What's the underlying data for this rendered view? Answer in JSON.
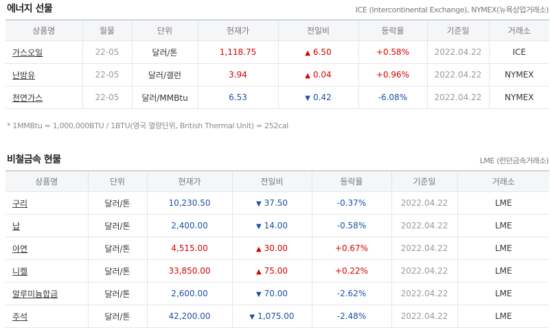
{
  "energy": {
    "title": "에너지 선물",
    "source": "ICE (Intercontinental Exchange), NYMEX(뉴욕상업거래소)",
    "headers": [
      "상품명",
      "월물",
      "단위",
      "현재가",
      "전일비",
      "등락율",
      "기준일",
      "거래소"
    ],
    "rows": [
      {
        "name": "가스오일",
        "month": "22-05",
        "unit": "달러/톤",
        "price": "1,118.75",
        "dir": "up",
        "change": "6.50",
        "rate": "+0.58%",
        "date": "2022.04.22",
        "exchange": "ICE"
      },
      {
        "name": "난방유",
        "month": "22-05",
        "unit": "달러/갤런",
        "price": "3.94",
        "dir": "up",
        "change": "0.04",
        "rate": "+0.96%",
        "date": "2022.04.22",
        "exchange": "NYMEX"
      },
      {
        "name": "천연가스",
        "month": "22-05",
        "unit": "달러/MMBtu",
        "price": "6.53",
        "dir": "down",
        "change": "0.42",
        "rate": "-6.08%",
        "date": "2022.04.22",
        "exchange": "NYMEX"
      }
    ],
    "note": "* 1MMBtu = 1,000,000BTU / 1BTU(영국 열량단위, British Thermal Unit) = 252cal"
  },
  "metals": {
    "title": "비철금속 현물",
    "source": "LME (런던금속거래소)",
    "headers": [
      "상품명",
      "단위",
      "현재가",
      "전일비",
      "등락율",
      "기준일",
      "거래소"
    ],
    "rows": [
      {
        "name": "구리",
        "unit": "달러/톤",
        "price": "10,230.50",
        "dir": "down",
        "change": "37.50",
        "rate": "-0.37%",
        "date": "2022.04.22",
        "exchange": "LME"
      },
      {
        "name": "납",
        "unit": "달러/톤",
        "price": "2,400.00",
        "dir": "down",
        "change": "14.00",
        "rate": "-0.58%",
        "date": "2022.04.22",
        "exchange": "LME"
      },
      {
        "name": "아연",
        "unit": "달러/톤",
        "price": "4,515.00",
        "dir": "up",
        "change": "30.00",
        "rate": "+0.67%",
        "date": "2022.04.22",
        "exchange": "LME"
      },
      {
        "name": "니켈",
        "unit": "달러/톤",
        "price": "33,850.00",
        "dir": "up",
        "change": "75.00",
        "rate": "+0.22%",
        "date": "2022.04.22",
        "exchange": "LME"
      },
      {
        "name": "알루미늄합금",
        "unit": "달러/톤",
        "price": "2,600.00",
        "dir": "down",
        "change": "70.00",
        "rate": "-2.62%",
        "date": "2022.04.22",
        "exchange": "LME"
      },
      {
        "name": "주석",
        "unit": "달러/톤",
        "price": "42,200.00",
        "dir": "down",
        "change": "1,075.00",
        "rate": "-2.48%",
        "date": "2022.04.22",
        "exchange": "LME"
      }
    ]
  },
  "icons": {
    "up": "triangle-up-icon",
    "down": "triangle-down-icon"
  },
  "colors": {
    "up": "#d60000",
    "down": "#1a4fa6"
  }
}
